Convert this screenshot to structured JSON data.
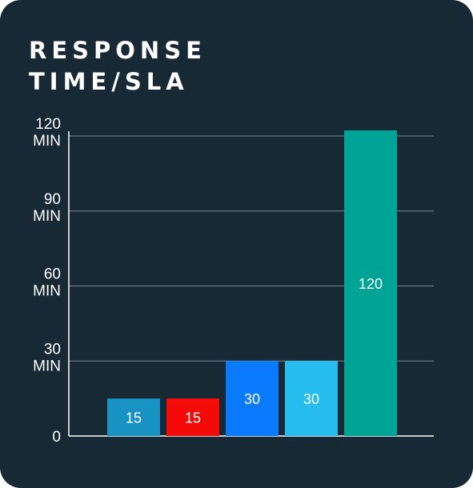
{
  "title_lines": [
    "RESPONSE",
    "TIME/SLA"
  ],
  "colors": {
    "background": "#172935",
    "grid": "#7d8a93",
    "axis": "#ffffff",
    "text": "#ffffff"
  },
  "chart_data": {
    "type": "bar",
    "title": "RESPONSE TIME/SLA",
    "xlabel": "",
    "ylabel": "",
    "ylim": [
      0,
      120
    ],
    "grid": true,
    "y_ticks": [
      {
        "value": 0,
        "lines": [
          "0"
        ]
      },
      {
        "value": 30,
        "lines": [
          "30",
          "MIN"
        ]
      },
      {
        "value": 60,
        "lines": [
          "60",
          "MIN"
        ]
      },
      {
        "value": 90,
        "lines": [
          "90",
          "MIN"
        ]
      },
      {
        "value": 120,
        "lines": [
          "120",
          "MIN"
        ]
      }
    ],
    "categories": [
      "",
      "",
      "",
      "",
      ""
    ],
    "values": [
      15,
      15,
      30,
      30,
      120
    ],
    "data_labels": [
      "15",
      "15",
      "30",
      "30",
      "120"
    ],
    "bar_colors": [
      "#1891c3",
      "#f50a0a",
      "#0a7bff",
      "#26bdee",
      "#00a496"
    ]
  }
}
